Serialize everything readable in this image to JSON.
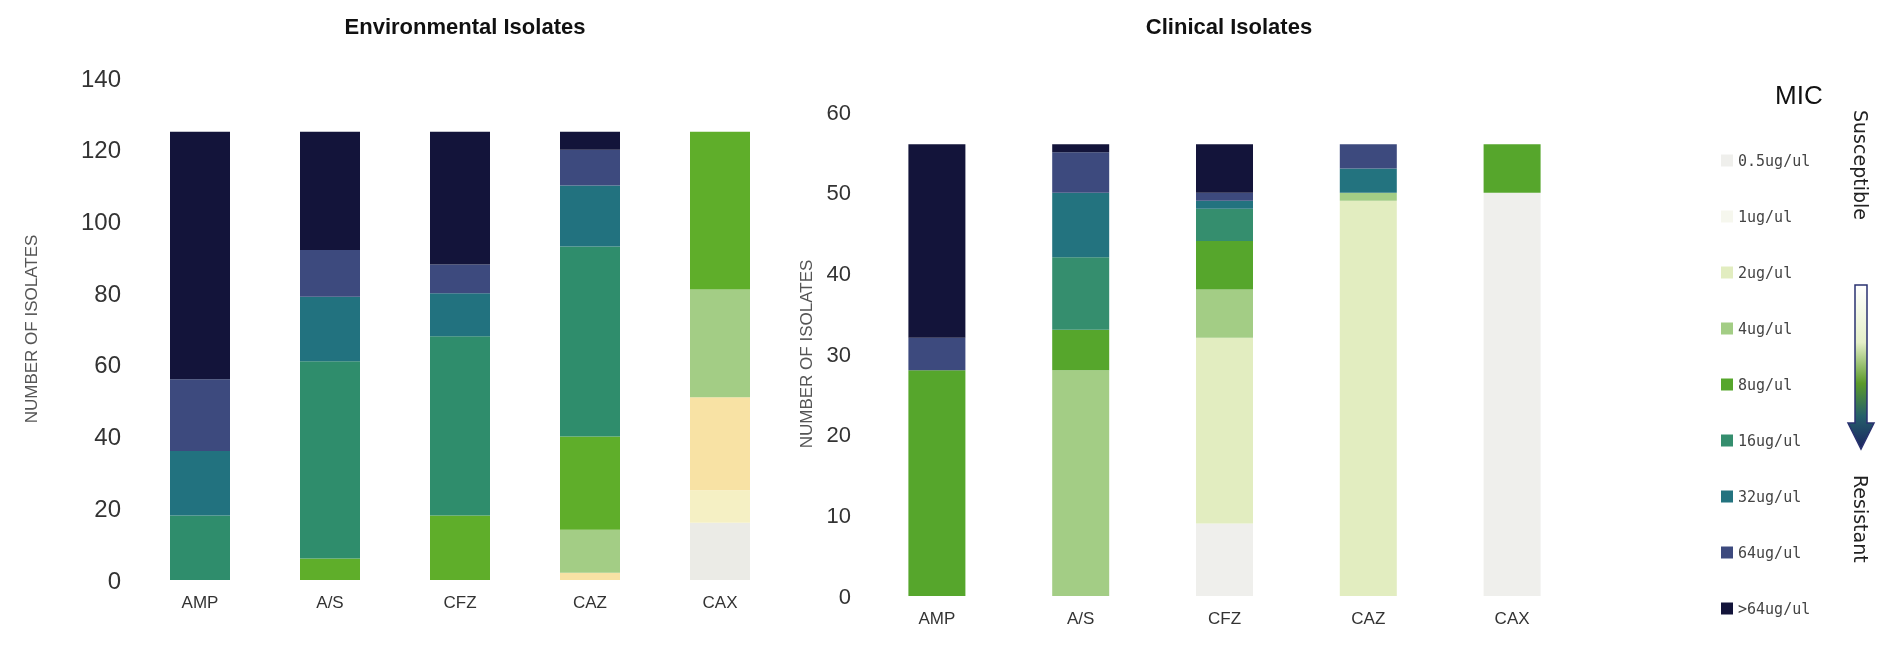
{
  "chart_data": [
    {
      "type": "bar",
      "title": "Environmental Isolates",
      "ylabel": "NUMBER OF ISOLATES",
      "categories": [
        "AMP",
        "A/S",
        "CFZ",
        "CAZ",
        "CAX"
      ],
      "stacked": true,
      "ylim": [
        0,
        140
      ],
      "yticks": [
        0,
        20,
        40,
        60,
        80,
        100,
        120,
        140
      ],
      "grid": false,
      "legend": false,
      "series": [
        {
          "color": "#ebebe6",
          "values": [
            0,
            0,
            0,
            0,
            16
          ]
        },
        {
          "color": "#f5f0c4",
          "values": [
            0,
            0,
            0,
            0,
            9
          ]
        },
        {
          "color": "#f8e2a4",
          "values": [
            0,
            0,
            0,
            2,
            26
          ]
        },
        {
          "color": "#a3cd85",
          "values": [
            0,
            0,
            0,
            12,
            30
          ]
        },
        {
          "color": "#5fae2a",
          "values": [
            0,
            6,
            18,
            26,
            44
          ]
        },
        {
          "color": "#2f8d6c",
          "values": [
            18,
            55,
            50,
            53,
            0
          ]
        },
        {
          "color": "#22727f",
          "values": [
            18,
            18,
            12,
            17,
            0
          ]
        },
        {
          "color": "#3d4a7e",
          "values": [
            20,
            13,
            8,
            10,
            0
          ]
        },
        {
          "color": "#13143a",
          "values": [
            69,
            33,
            37,
            5,
            0
          ]
        }
      ]
    },
    {
      "type": "bar",
      "title": "Clinical Isolates",
      "ylabel": "NUMBER OF ISOLATES",
      "legend_title": "MIC",
      "annotations": [
        "Susceptible",
        "Resistant"
      ],
      "categories": [
        "AMP",
        "A/S",
        "CFZ",
        "CAZ",
        "CAX"
      ],
      "stacked": true,
      "ylim": [
        0,
        60
      ],
      "yticks": [
        0,
        10,
        20,
        30,
        40,
        50,
        60
      ],
      "grid": false,
      "legend": "right",
      "series": [
        {
          "name": "0.5ug/ul",
          "color": "#efefec",
          "values": [
            0,
            0,
            9,
            0,
            50
          ]
        },
        {
          "name": "1ug/ul",
          "color": "#f6f7ee",
          "values": [
            0,
            0,
            0,
            0,
            0
          ]
        },
        {
          "name": "2ug/ul",
          "color": "#e2edc0",
          "values": [
            0,
            0,
            23,
            49,
            0
          ]
        },
        {
          "name": "4ug/ul",
          "color": "#a3cd85",
          "values": [
            0,
            28,
            6,
            1,
            0
          ]
        },
        {
          "name": "8ug/ul",
          "color": "#56a62c",
          "values": [
            28,
            5,
            6,
            0,
            6
          ]
        },
        {
          "name": "16ug/ul",
          "color": "#358e6e",
          "values": [
            0,
            9,
            4,
            0,
            0
          ]
        },
        {
          "name": "32ug/ul",
          "color": "#23737f",
          "values": [
            0,
            8,
            1,
            3,
            0
          ]
        },
        {
          "name": "64ug/ul",
          "color": "#3d4a7e",
          "values": [
            4,
            5,
            1,
            3,
            0
          ]
        },
        {
          "name": ">64ug/ul",
          "color": "#13143a",
          "values": [
            24,
            1,
            6,
            0,
            0
          ]
        }
      ]
    }
  ]
}
